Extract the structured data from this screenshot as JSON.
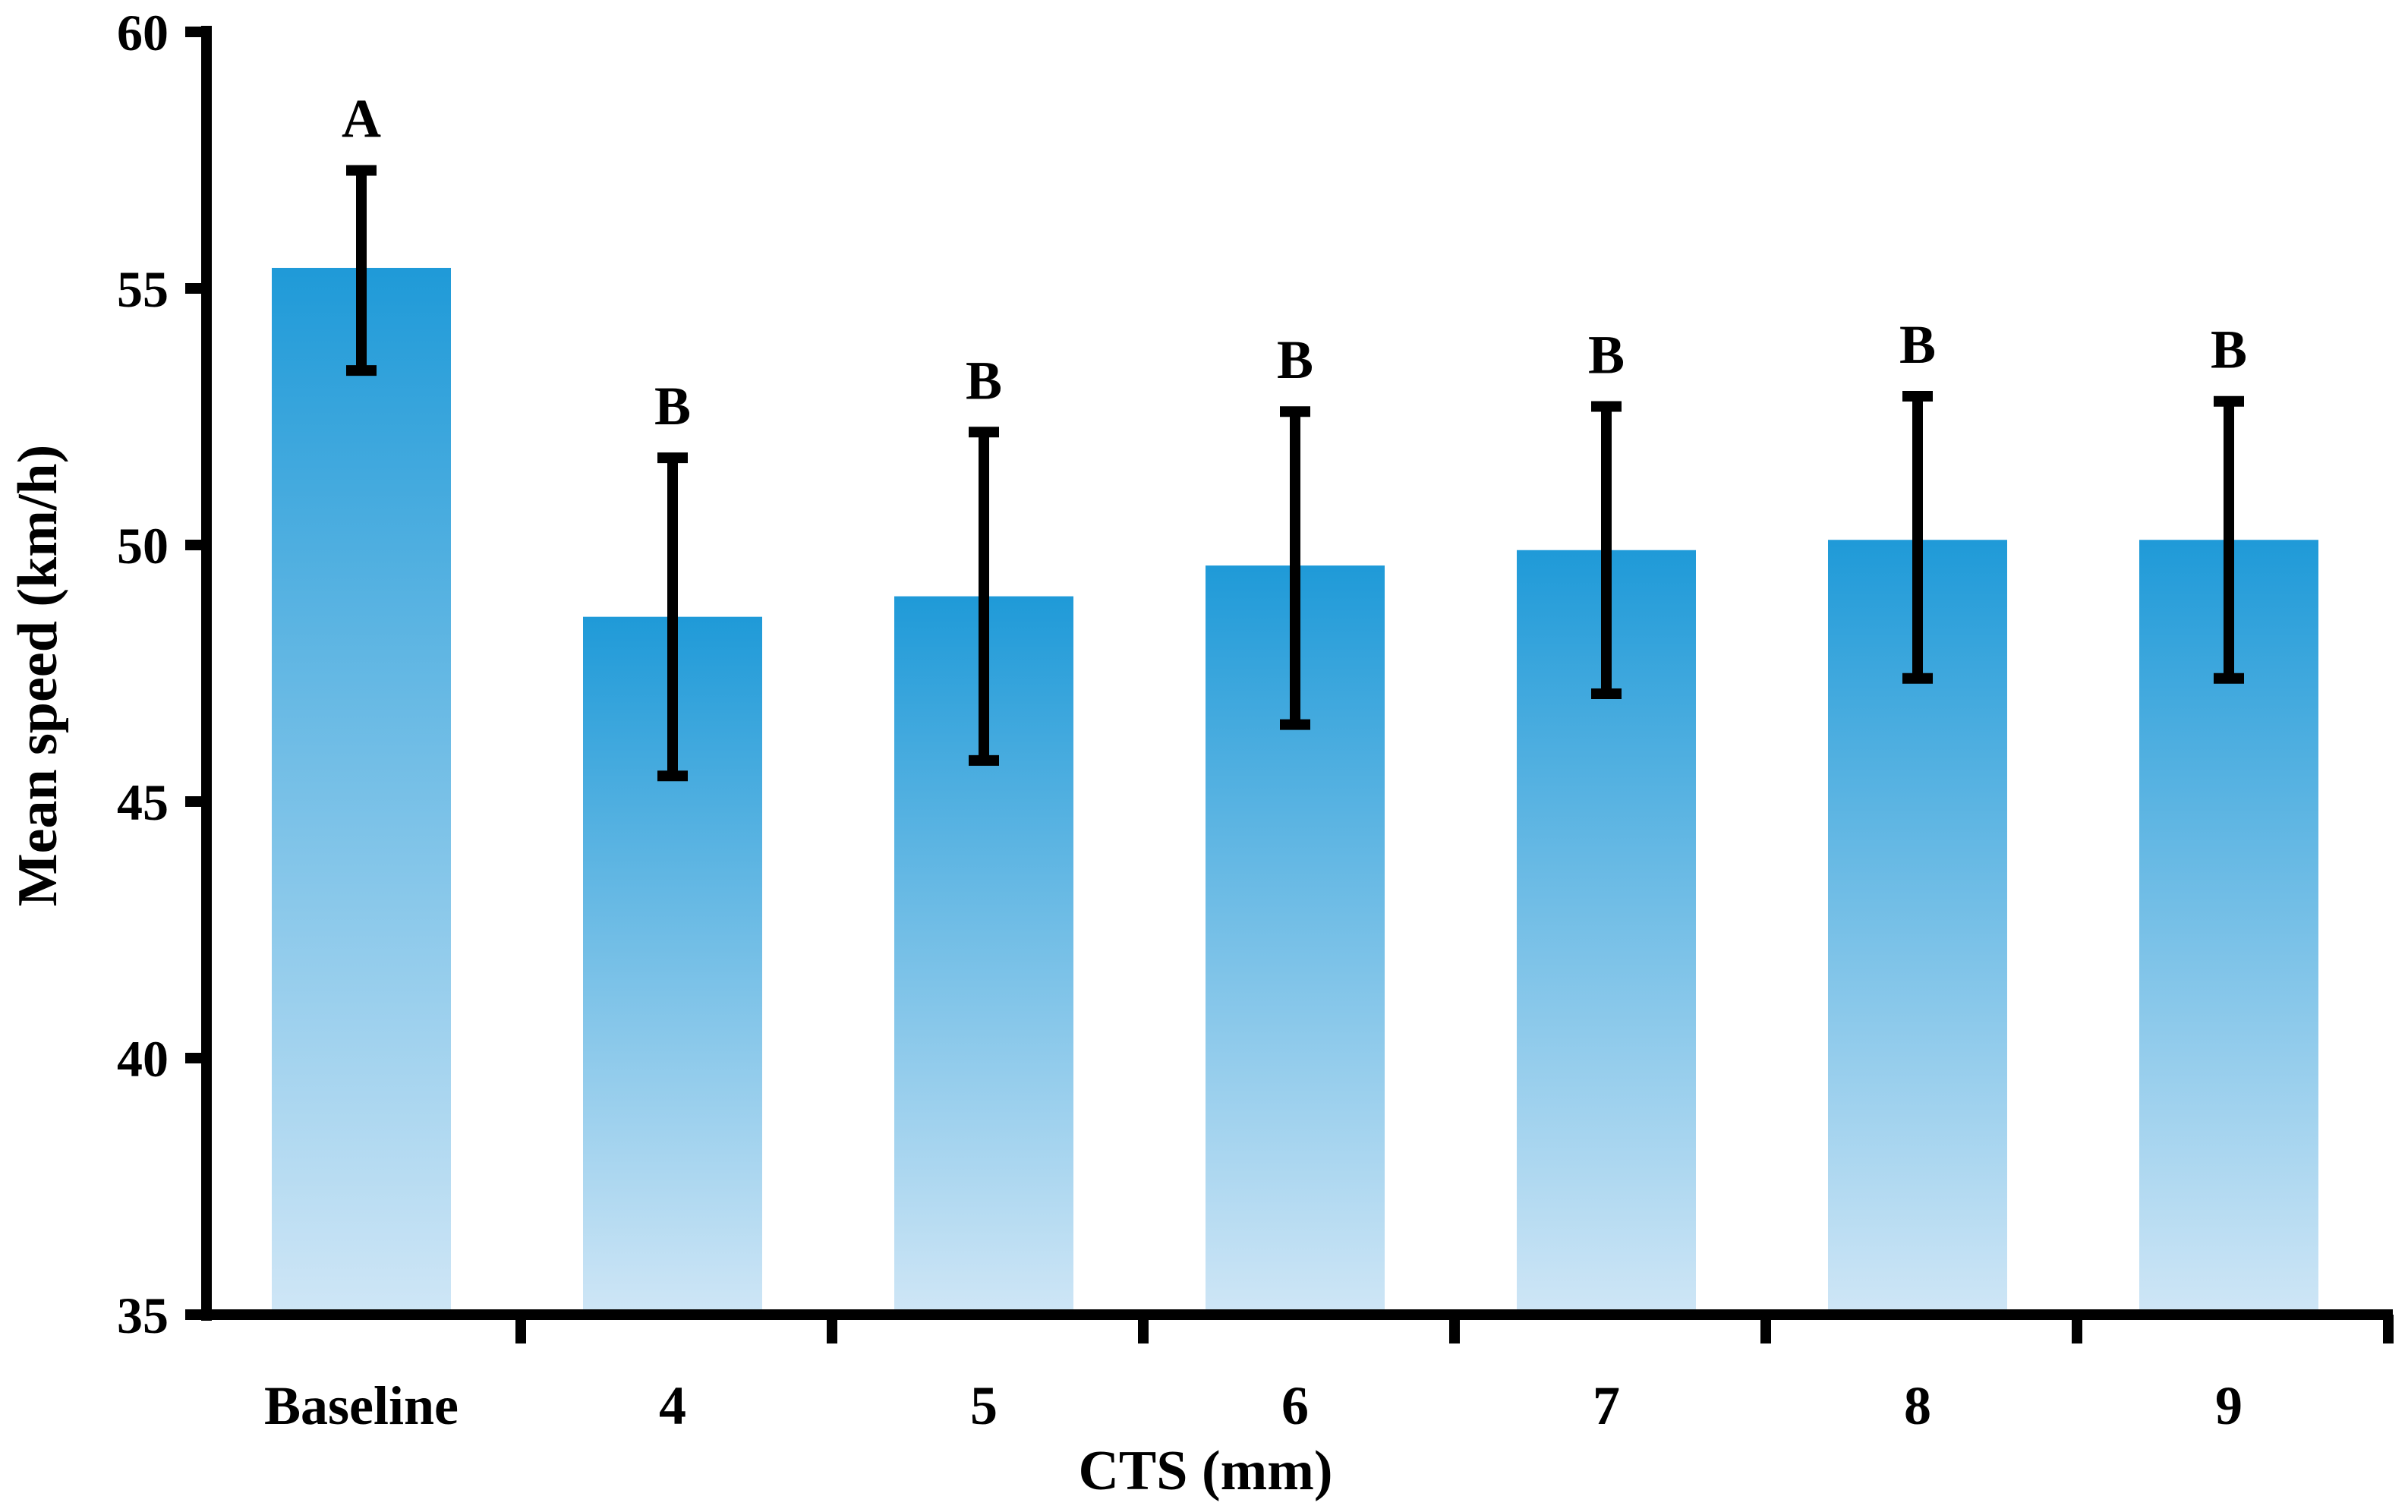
{
  "chart_data": {
    "type": "bar",
    "title": "",
    "xlabel": "CTS (mm)",
    "ylabel": "Mean speed (km/h)",
    "ylim": [
      35,
      60
    ],
    "yticks": [
      35,
      40,
      45,
      50,
      55,
      60
    ],
    "grid": false,
    "categories": [
      "Baseline",
      "4",
      "5",
      "6",
      "7",
      "8",
      "9"
    ],
    "series": [
      {
        "name": "Mean speed",
        "values": [
          55.4,
          48.6,
          49.0,
          49.6,
          49.9,
          50.1,
          50.1
        ],
        "error_upper": [
          57.3,
          51.7,
          52.2,
          52.6,
          52.7,
          52.9,
          52.8
        ],
        "error_lower": [
          53.4,
          45.5,
          45.8,
          46.5,
          47.1,
          47.4,
          47.4
        ]
      }
    ],
    "significance_labels": [
      "A",
      "B",
      "B",
      "B",
      "B",
      "B",
      "B"
    ],
    "colors": {
      "bar_top": "#1f9ad8",
      "bar_bottom": "#cfe6f6",
      "error_bar": "#000000",
      "axis": "#000000"
    }
  }
}
